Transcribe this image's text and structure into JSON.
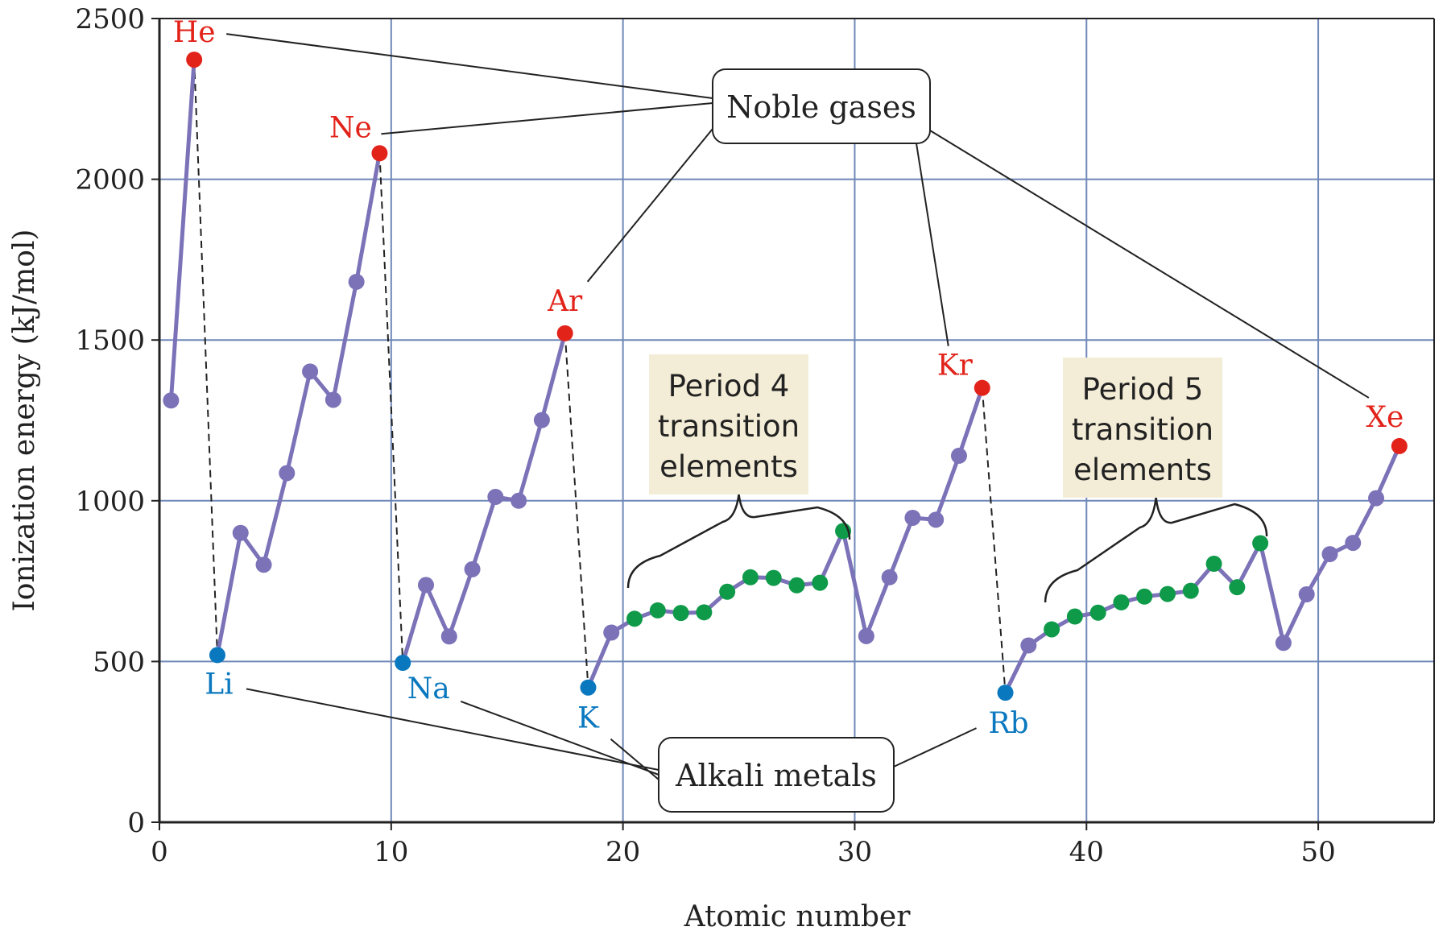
{
  "chart_data": {
    "type": "line",
    "xlabel": "Atomic number",
    "ylabel": "Ionization energy (kJ/mol)",
    "xlim": [
      0,
      55
    ],
    "ylim": [
      0,
      2500
    ],
    "xticks": [
      0,
      10,
      20,
      30,
      40,
      50
    ],
    "yticks": [
      0,
      500,
      1000,
      1500,
      2000,
      2500
    ],
    "grid": true,
    "colors": {
      "line": "#7b72b8",
      "point": "#7b72b8",
      "noble": "#e2231a",
      "alkali": "#0a78bf",
      "transition": "#0f9a4a",
      "grid": "#6f88b8",
      "callout_fill": "#ffffff",
      "transition_fill": "#f3ecd6"
    },
    "series": [
      {
        "points": [
          {
            "x": 1,
            "y": 1312,
            "group": "other"
          },
          {
            "x": 2,
            "y": 2372,
            "group": "noble",
            "label": "He"
          },
          {
            "x": 3,
            "y": 520,
            "group": "alkali",
            "label": "Li"
          },
          {
            "x": 4,
            "y": 900,
            "group": "other"
          },
          {
            "x": 5,
            "y": 801,
            "group": "other"
          },
          {
            "x": 6,
            "y": 1086,
            "group": "other"
          },
          {
            "x": 7,
            "y": 1402,
            "group": "other"
          },
          {
            "x": 8,
            "y": 1314,
            "group": "other"
          },
          {
            "x": 9,
            "y": 1681,
            "group": "other"
          },
          {
            "x": 10,
            "y": 2081,
            "group": "noble",
            "label": "Ne"
          },
          {
            "x": 11,
            "y": 496,
            "group": "alkali",
            "label": "Na"
          },
          {
            "x": 12,
            "y": 738,
            "group": "other"
          },
          {
            "x": 13,
            "y": 578,
            "group": "other"
          },
          {
            "x": 14,
            "y": 787,
            "group": "other"
          },
          {
            "x": 15,
            "y": 1012,
            "group": "other"
          },
          {
            "x": 16,
            "y": 1000,
            "group": "other"
          },
          {
            "x": 17,
            "y": 1251,
            "group": "other"
          },
          {
            "x": 18,
            "y": 1521,
            "group": "noble",
            "label": "Ar"
          },
          {
            "x": 19,
            "y": 419,
            "group": "alkali",
            "label": "K"
          },
          {
            "x": 20,
            "y": 590,
            "group": "other"
          },
          {
            "x": 21,
            "y": 633,
            "group": "transition"
          },
          {
            "x": 22,
            "y": 659,
            "group": "transition"
          },
          {
            "x": 23,
            "y": 651,
            "group": "transition"
          },
          {
            "x": 24,
            "y": 653,
            "group": "transition"
          },
          {
            "x": 25,
            "y": 717,
            "group": "transition"
          },
          {
            "x": 26,
            "y": 762,
            "group": "transition"
          },
          {
            "x": 27,
            "y": 760,
            "group": "transition"
          },
          {
            "x": 28,
            "y": 737,
            "group": "transition"
          },
          {
            "x": 29,
            "y": 745,
            "group": "transition"
          },
          {
            "x": 30,
            "y": 906,
            "group": "transition"
          },
          {
            "x": 31,
            "y": 579,
            "group": "other"
          },
          {
            "x": 32,
            "y": 762,
            "group": "other"
          },
          {
            "x": 33,
            "y": 947,
            "group": "other"
          },
          {
            "x": 34,
            "y": 941,
            "group": "other"
          },
          {
            "x": 35,
            "y": 1140,
            "group": "other"
          },
          {
            "x": 36,
            "y": 1351,
            "group": "noble",
            "label": "Kr"
          },
          {
            "x": 37,
            "y": 403,
            "group": "alkali",
            "label": "Rb"
          },
          {
            "x": 38,
            "y": 550,
            "group": "other"
          },
          {
            "x": 39,
            "y": 600,
            "group": "transition"
          },
          {
            "x": 40,
            "y": 640,
            "group": "transition"
          },
          {
            "x": 41,
            "y": 652,
            "group": "transition"
          },
          {
            "x": 42,
            "y": 684,
            "group": "transition"
          },
          {
            "x": 43,
            "y": 702,
            "group": "transition"
          },
          {
            "x": 44,
            "y": 710,
            "group": "transition"
          },
          {
            "x": 45,
            "y": 720,
            "group": "transition"
          },
          {
            "x": 46,
            "y": 804,
            "group": "transition"
          },
          {
            "x": 47,
            "y": 731,
            "group": "transition"
          },
          {
            "x": 48,
            "y": 868,
            "group": "transition"
          },
          {
            "x": 49,
            "y": 558,
            "group": "other"
          },
          {
            "x": 50,
            "y": 709,
            "group": "other"
          },
          {
            "x": 51,
            "y": 834,
            "group": "other"
          },
          {
            "x": 52,
            "y": 869,
            "group": "other"
          },
          {
            "x": 53,
            "y": 1008,
            "group": "other"
          },
          {
            "x": 54,
            "y": 1170,
            "group": "noble",
            "label": "Xe"
          }
        ]
      }
    ],
    "annotations": {
      "noble_gases": "Noble gases",
      "alkali_metals": "Alkali metals",
      "period4": [
        "Period 4",
        "transition",
        "elements"
      ],
      "period5": [
        "Period 5",
        "transition",
        "elements"
      ]
    }
  }
}
